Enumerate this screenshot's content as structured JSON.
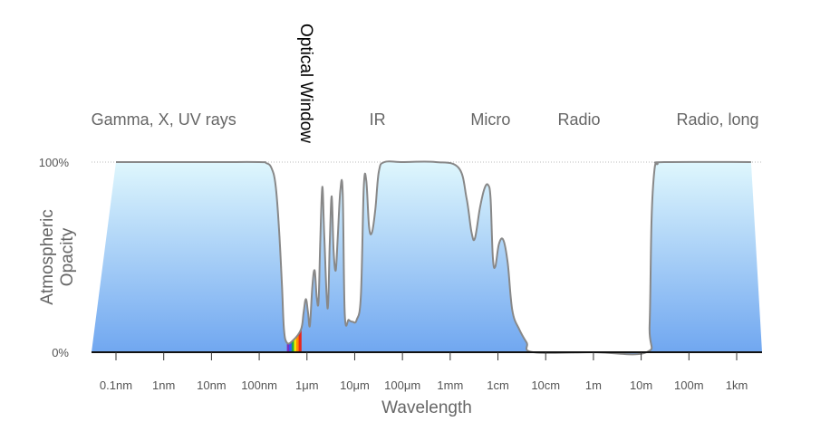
{
  "chart_data": {
    "type": "area",
    "xlabel": "Wavelength",
    "ylabel": [
      "Atmospheric",
      "Opacity"
    ],
    "x_scale": "log",
    "ylim": [
      0,
      100
    ],
    "y_ticks": [
      {
        "value": 0,
        "label": "0%"
      },
      {
        "value": 100,
        "label": "100%"
      }
    ],
    "x_ticks": [
      {
        "value": 1e-10,
        "label": "0.1nm"
      },
      {
        "value": 1e-09,
        "label": "1nm"
      },
      {
        "value": 1e-08,
        "label": "10nm"
      },
      {
        "value": 1e-07,
        "label": "100nm"
      },
      {
        "value": 1e-06,
        "label": "1μm"
      },
      {
        "value": 1e-05,
        "label": "10μm"
      },
      {
        "value": 0.0001,
        "label": "100μm"
      },
      {
        "value": 0.001,
        "label": "1mm"
      },
      {
        "value": 0.01,
        "label": "1cm"
      },
      {
        "value": 0.1,
        "label": "10cm"
      },
      {
        "value": 1,
        "label": "1m"
      },
      {
        "value": 10,
        "label": "10m"
      },
      {
        "value": 100,
        "label": "100m"
      },
      {
        "value": 1000,
        "label": "1km"
      }
    ],
    "bands": [
      {
        "label": "Gamma, X, UV rays",
        "x": 1e-09
      },
      {
        "label": "IR",
        "x": 3e-05
      },
      {
        "label": "Micro",
        "x": 0.007
      },
      {
        "label": "Radio",
        "x": 0.5
      },
      {
        "label": "Radio, long",
        "x": 400
      }
    ],
    "optical_window": {
      "label": "Optical Window",
      "x_min": 3.8e-07,
      "x_max": 7.5e-07
    },
    "colors": {
      "fill_top": "#dff7fd",
      "fill_bottom": "#6fa6f0",
      "curve": "#888888",
      "axis": "#111111",
      "rainbow": [
        "#7b2fbe",
        "#2d5bff",
        "#1fa84a",
        "#f2e600",
        "#ff8c00",
        "#e8261c"
      ]
    },
    "series": [
      {
        "values": [
          [
            1e-10,
            100
          ],
          [
            1e-08,
            100
          ],
          [
            1e-07,
            100
          ],
          [
            1.4e-07,
            99.5
          ],
          [
            1.8e-07,
            97
          ],
          [
            2.2e-07,
            88
          ],
          [
            2.6e-07,
            65
          ],
          [
            3e-07,
            35
          ],
          [
            3.3e-07,
            12
          ],
          [
            3.8e-07,
            5
          ],
          [
            5e-07,
            6
          ],
          [
            7.5e-07,
            12
          ],
          [
            8.5e-07,
            21
          ],
          [
            9.5e-07,
            28
          ],
          [
            1.05e-06,
            21
          ],
          [
            1.15e-06,
            14
          ],
          [
            1.3e-06,
            35
          ],
          [
            1.45e-06,
            43
          ],
          [
            1.6e-06,
            29
          ],
          [
            1.75e-06,
            27
          ],
          [
            1.9e-06,
            59
          ],
          [
            2.1e-06,
            87
          ],
          [
            2.3e-06,
            62
          ],
          [
            2.7e-06,
            23
          ],
          [
            3e-06,
            57
          ],
          [
            3.3e-06,
            82
          ],
          [
            3.6e-06,
            54
          ],
          [
            4e-06,
            43
          ],
          [
            4.4e-06,
            60
          ],
          [
            5e-06,
            85
          ],
          [
            5.6e-06,
            84
          ],
          [
            6.2e-06,
            20
          ],
          [
            7.5e-06,
            17
          ],
          [
            9e-06,
            16
          ],
          [
            1.1e-05,
            17
          ],
          [
            1.35e-05,
            30
          ],
          [
            1.55e-05,
            87
          ],
          [
            1.75e-05,
            90
          ],
          [
            2e-05,
            66
          ],
          [
            2.3e-05,
            63
          ],
          [
            2.7e-05,
            75
          ],
          [
            3.2e-05,
            95
          ],
          [
            4.2e-05,
            100
          ],
          [
            0.0001,
            100
          ],
          [
            0.0005,
            100
          ],
          [
            0.0015,
            97
          ],
          [
            0.0022,
            81
          ],
          [
            0.0028,
            63
          ],
          [
            0.0033,
            60
          ],
          [
            0.0042,
            76
          ],
          [
            0.0052,
            86
          ],
          [
            0.0062,
            88
          ],
          [
            0.007,
            81
          ],
          [
            0.0078,
            50
          ],
          [
            0.0088,
            45
          ],
          [
            0.0105,
            57
          ],
          [
            0.013,
            59
          ],
          [
            0.016,
            47
          ],
          [
            0.02,
            22
          ],
          [
            0.028,
            12
          ],
          [
            0.04,
            5
          ],
          [
            0.055,
            0
          ],
          [
            1,
            0
          ],
          [
            13.0,
            0
          ],
          [
            15.0,
            14
          ],
          [
            16.5,
            70
          ],
          [
            19.0,
            96
          ],
          [
            22.0,
            99
          ],
          [
            30.0,
            100
          ],
          [
            2000.0,
            100
          ]
        ]
      }
    ]
  }
}
